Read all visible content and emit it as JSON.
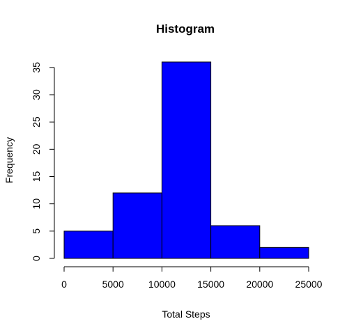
{
  "chart_data": {
    "type": "bar",
    "title": "Histogram",
    "xlabel": "Total Steps",
    "ylabel": "Frequency",
    "bins": [
      {
        "start": 0,
        "end": 5000,
        "count": 5
      },
      {
        "start": 5000,
        "end": 10000,
        "count": 12
      },
      {
        "start": 10000,
        "end": 15000,
        "count": 36
      },
      {
        "start": 15000,
        "end": 20000,
        "count": 6
      },
      {
        "start": 20000,
        "end": 25000,
        "count": 2
      }
    ],
    "xticks": [
      "0",
      "5000",
      "10000",
      "15000",
      "20000",
      "25000"
    ],
    "yticks": [
      "0",
      "5",
      "10",
      "15",
      "20",
      "25",
      "30",
      "35"
    ],
    "xlim": [
      0,
      25000
    ],
    "ylim": [
      0,
      36
    ],
    "bar_color": "#0000ff",
    "grid": false
  }
}
